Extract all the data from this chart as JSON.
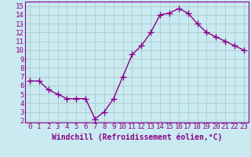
{
  "x": [
    0,
    1,
    2,
    3,
    4,
    5,
    6,
    7,
    8,
    9,
    10,
    11,
    12,
    13,
    14,
    15,
    16,
    17,
    18,
    19,
    20,
    21,
    22,
    23
  ],
  "y": [
    6.5,
    6.5,
    5.5,
    5.0,
    4.5,
    4.5,
    4.5,
    2.2,
    3.0,
    4.5,
    7.0,
    9.5,
    10.5,
    12.0,
    14.0,
    14.2,
    14.7,
    14.2,
    13.0,
    12.0,
    11.5,
    11.0,
    10.5,
    10.0
  ],
  "line_color": "#8b008b",
  "marker_color": "#8b008b",
  "bg_color": "#c8eaf0",
  "grid_color": "#b0c8d0",
  "xlabel": "Windchill (Refroidissement éolien,°C)",
  "xlabel_color": "#8b008b",
  "tick_color": "#8b008b",
  "spine_color": "#8b008b",
  "ylim": [
    1.8,
    15.5
  ],
  "xlim": [
    -0.5,
    23.5
  ],
  "yticks": [
    2,
    3,
    4,
    5,
    6,
    7,
    8,
    9,
    10,
    11,
    12,
    13,
    14,
    15
  ],
  "xticks": [
    0,
    1,
    2,
    3,
    4,
    5,
    6,
    7,
    8,
    9,
    10,
    11,
    12,
    13,
    14,
    15,
    16,
    17,
    18,
    19,
    20,
    21,
    22,
    23
  ],
  "marker_size": 3,
  "line_width": 1.0,
  "font_size": 6.5,
  "xlabel_fontsize": 7.0
}
